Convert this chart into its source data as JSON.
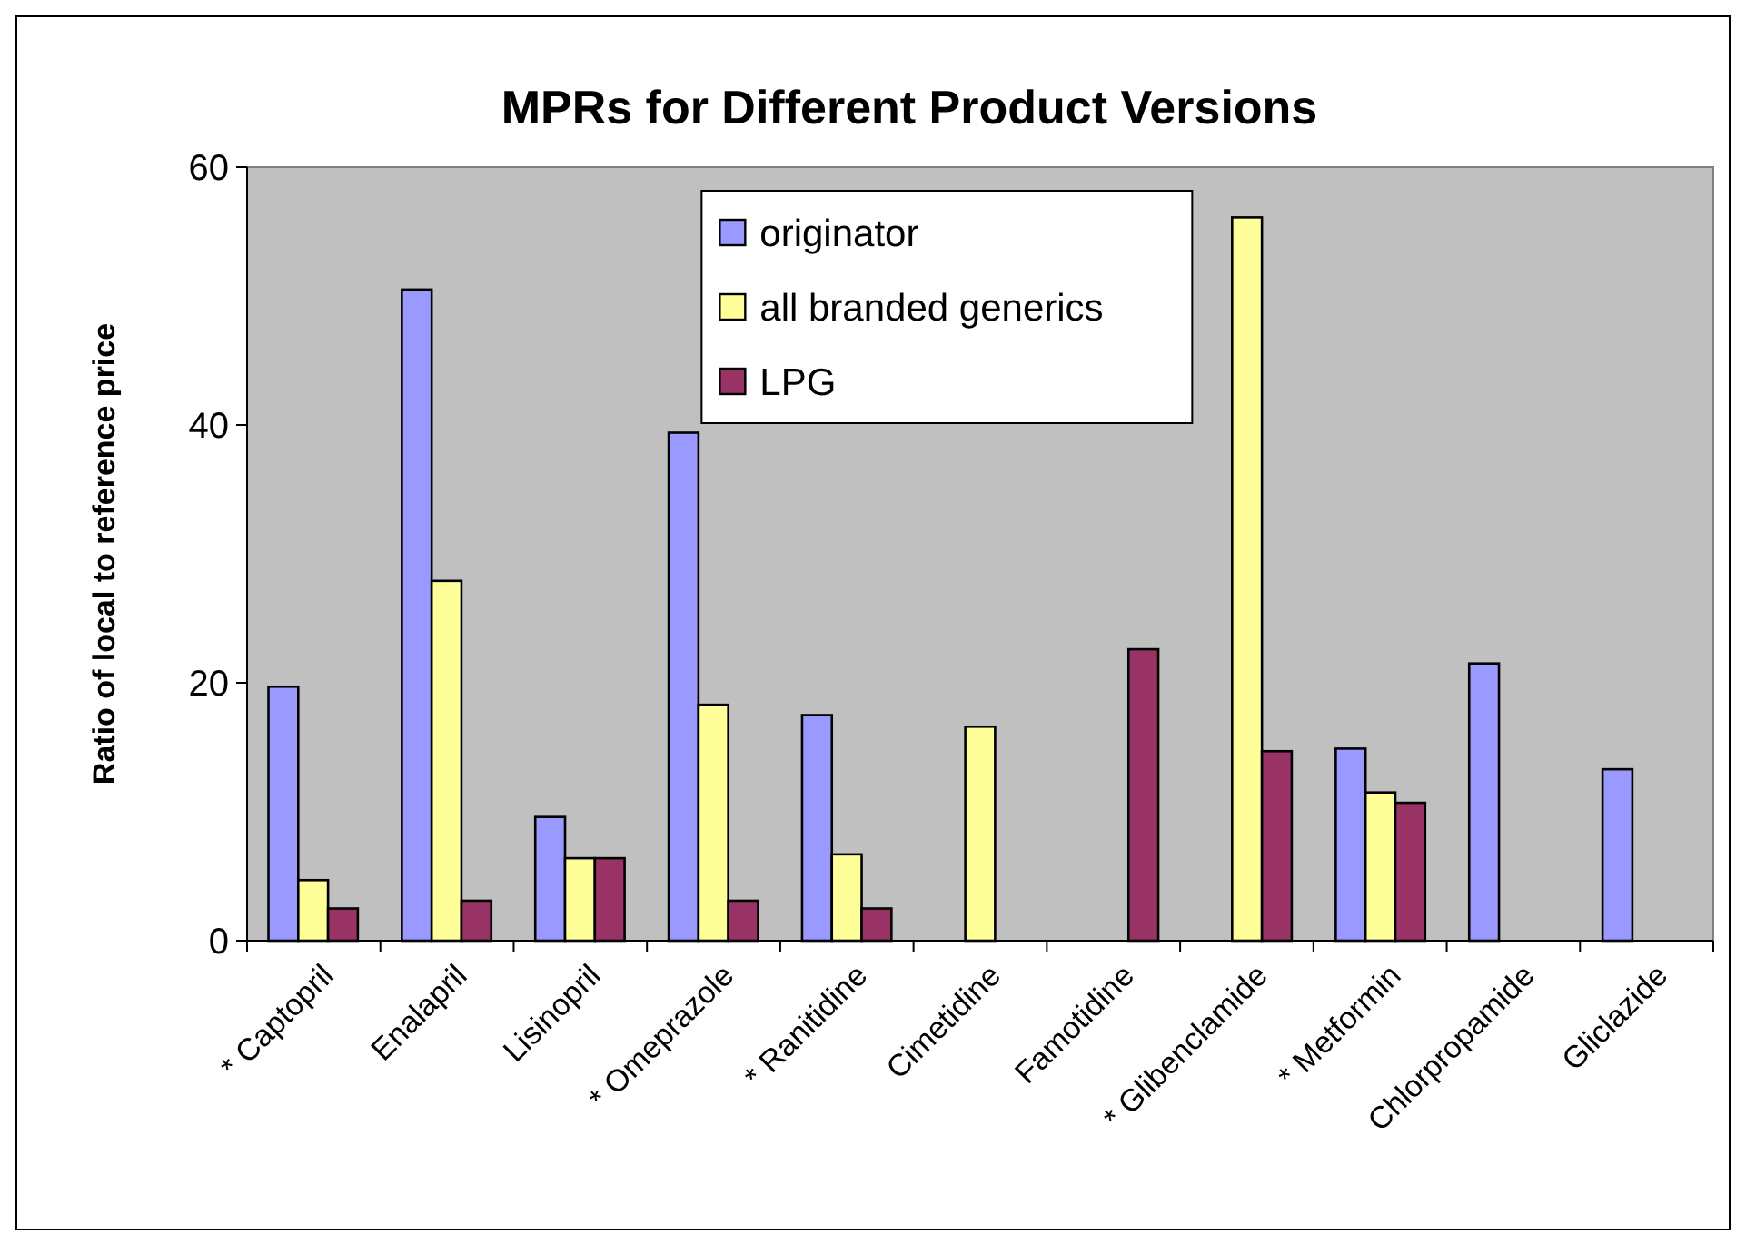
{
  "chart_data": {
    "type": "bar",
    "title": "MPRs for Different Product Versions",
    "ylabel": "Ratio of local to reference price",
    "categories": [
      "* Captopril",
      "Enalapril",
      "Lisinopril",
      "* Omeprazole",
      "* Ranitidine",
      "Cimetidine",
      "Famotidine",
      "* Glibenclamide",
      "* Metformin",
      "Chlorpropamide",
      "Gliclazide"
    ],
    "series": [
      {
        "name": "originator",
        "color": "#9999ff",
        "values": [
          19.7,
          50.5,
          9.6,
          39.4,
          17.5,
          null,
          null,
          null,
          14.9,
          21.5,
          13.3
        ]
      },
      {
        "name": "all branded generics",
        "color": "#ffff99",
        "values": [
          4.7,
          27.9,
          6.4,
          18.3,
          6.7,
          16.6,
          null,
          56.1,
          11.5,
          null,
          null
        ]
      },
      {
        "name": "LPG",
        "color": "#993366",
        "values": [
          2.5,
          3.1,
          6.4,
          3.1,
          2.5,
          null,
          22.6,
          14.7,
          10.7,
          null,
          null
        ]
      }
    ],
    "ylim": [
      0,
      60
    ],
    "yticks": [
      0,
      20,
      40,
      60
    ],
    "grid": false,
    "legend": "top"
  }
}
